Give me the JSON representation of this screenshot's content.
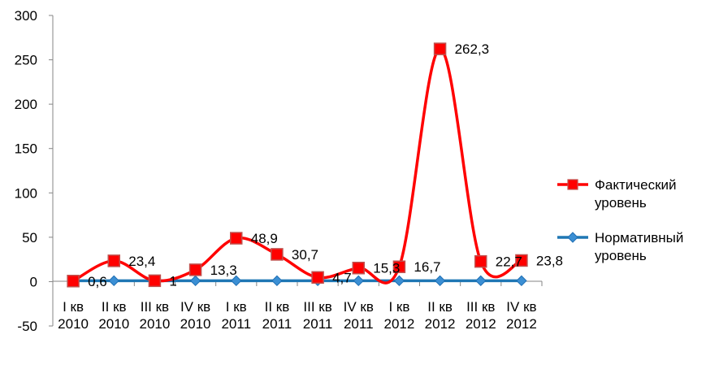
{
  "chart_data": {
    "type": "line",
    "categories": [
      [
        "I кв",
        "2010"
      ],
      [
        "II кв",
        "2010"
      ],
      [
        "III кв",
        "2010"
      ],
      [
        "IV кв",
        "2010"
      ],
      [
        "I кв",
        "2011"
      ],
      [
        "II кв",
        "2011"
      ],
      [
        "III кв",
        "2011"
      ],
      [
        "IV кв",
        "2011"
      ],
      [
        "I кв",
        "2012"
      ],
      [
        "II кв",
        "2012"
      ],
      [
        "III кв",
        "2012"
      ],
      [
        "IV кв",
        "2012"
      ]
    ],
    "series": [
      {
        "name": "Фактический уровень",
        "name_lines": [
          "Фактический",
          "уровень"
        ],
        "values": [
          0.6,
          23.4,
          1,
          13.3,
          48.9,
          30.7,
          4.7,
          15.3,
          16.7,
          262.3,
          22.7,
          23.8
        ],
        "labels": [
          "0,6",
          "23,4",
          "1",
          "13,3",
          "48,9",
          "30,7",
          "4,7",
          "15,3",
          "16,7",
          "262,3",
          "22,7",
          "23,8"
        ],
        "color": "#ff0000",
        "marker_fill": "#ff0000",
        "marker_stroke": "#c0504d",
        "marker": "square",
        "smooth": true
      },
      {
        "name": "Нормативный уровень",
        "name_lines": [
          "Нормативный",
          "уровень"
        ],
        "values": [
          1,
          1,
          1,
          1,
          1,
          1,
          1,
          1,
          1,
          1,
          1,
          1
        ],
        "color": "#1f77b4",
        "marker_fill": "#3b8fd4",
        "marker": "diamond",
        "smooth": false
      }
    ],
    "y_ticks": [
      "300",
      "250",
      "200",
      "150",
      "100",
      "50",
      "0",
      "-50"
    ],
    "ylim": [
      -50,
      300
    ],
    "y_step": 50,
    "grid": false,
    "legend_position": "right"
  }
}
